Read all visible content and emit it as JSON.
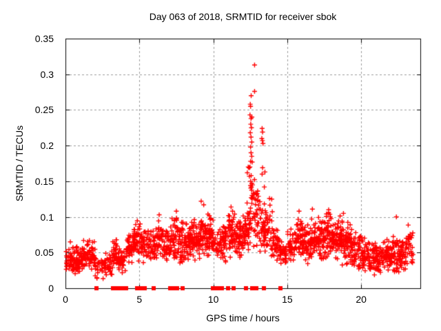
{
  "chart_data": {
    "type": "scatter",
    "title": "Day 063 of 2018, SRMTID for receiver sbok",
    "xlabel": "GPS time / hours",
    "ylabel": "SRMTID / TECUs",
    "xlim": [
      0,
      24
    ],
    "ylim": [
      0,
      0.35
    ],
    "xticks": [
      0,
      5,
      10,
      15,
      20
    ],
    "xtick_labels": [
      "0",
      "5",
      "10",
      "15",
      "20"
    ],
    "yticks": [
      0,
      0.05,
      0.1,
      0.15,
      0.2,
      0.25,
      0.3,
      0.35
    ],
    "ytick_labels": [
      "0",
      "0.05",
      "0.1",
      "0.15",
      "0.2",
      "0.25",
      "0.3",
      "0.35"
    ],
    "grid": true,
    "legend": "none",
    "colors": {
      "axis": "#000000",
      "grid": "#9a9a9a",
      "background": "#ffffff",
      "marker": "#ff0000"
    },
    "series": [
      {
        "name": "SRMTID",
        "marker": "plus",
        "color": "#ff0000",
        "points": [
          [
            0.33,
            0.065
          ],
          [
            6.34,
            0.103
          ],
          [
            7.5,
            0.108
          ],
          [
            9.18,
            0.122
          ],
          [
            9.35,
            0.117
          ],
          [
            11.2,
            0.114
          ],
          [
            11.3,
            0.108
          ],
          [
            12.3,
            0.162
          ],
          [
            12.36,
            0.17
          ],
          [
            12.42,
            0.169
          ],
          [
            12.44,
            0.157
          ],
          [
            12.48,
            0.17
          ],
          [
            12.48,
            0.243
          ],
          [
            12.5,
            0.218
          ],
          [
            12.5,
            0.258
          ],
          [
            12.52,
            0.15
          ],
          [
            12.52,
            0.178
          ],
          [
            12.52,
            0.198
          ],
          [
            12.52,
            0.255
          ],
          [
            12.53,
            0.23
          ],
          [
            12.55,
            0.19
          ],
          [
            12.55,
            0.212
          ],
          [
            12.55,
            0.238
          ],
          [
            12.56,
            0.127
          ],
          [
            12.56,
            0.158
          ],
          [
            12.56,
            0.27
          ],
          [
            12.58,
            0.142
          ],
          [
            12.58,
            0.225
          ],
          [
            12.6,
            0.147
          ],
          [
            12.6,
            0.185
          ],
          [
            12.6,
            0.205
          ],
          [
            12.61,
            0.24
          ],
          [
            12.63,
            0.177
          ],
          [
            12.7,
            0.133
          ],
          [
            12.79,
            0.276
          ],
          [
            12.79,
            0.313
          ],
          [
            12.98,
            0.124
          ],
          [
            13.0,
            0.136
          ],
          [
            13.05,
            0.129
          ],
          [
            13.28,
            0.21
          ],
          [
            13.3,
            0.16
          ],
          [
            13.3,
            0.224
          ],
          [
            13.32,
            0.207
          ],
          [
            13.33,
            0.169
          ],
          [
            13.33,
            0.219
          ],
          [
            13.36,
            0.203
          ],
          [
            13.45,
            0.142
          ],
          [
            13.49,
            0.163
          ],
          [
            13.8,
            0.126
          ],
          [
            13.95,
            0.125
          ],
          [
            15.8,
            0.108
          ],
          [
            16.7,
            0.111
          ],
          [
            17.8,
            0.11
          ],
          [
            18.8,
            0.105
          ],
          [
            22.38,
            0.1
          ]
        ],
        "noise_bands": [
          [
            0.05,
            0.5,
            0.022,
            0.058,
            40
          ],
          [
            0.5,
            1.0,
            0.018,
            0.062,
            45
          ],
          [
            1.0,
            1.5,
            0.022,
            0.068,
            45
          ],
          [
            1.5,
            2.0,
            0.018,
            0.073,
            40
          ],
          [
            2.0,
            2.6,
            0.01,
            0.045,
            28
          ],
          [
            2.6,
            3.1,
            0.014,
            0.052,
            35
          ],
          [
            3.1,
            3.6,
            0.018,
            0.075,
            40
          ],
          [
            3.6,
            4.1,
            0.02,
            0.062,
            35
          ],
          [
            4.1,
            4.6,
            0.03,
            0.08,
            40
          ],
          [
            4.6,
            5.1,
            0.035,
            0.095,
            45
          ],
          [
            5.1,
            5.6,
            0.035,
            0.085,
            40
          ],
          [
            5.6,
            6.1,
            0.03,
            0.085,
            40
          ],
          [
            6.1,
            6.6,
            0.04,
            0.1,
            40
          ],
          [
            6.6,
            7.1,
            0.035,
            0.09,
            40
          ],
          [
            7.1,
            7.6,
            0.035,
            0.105,
            45
          ],
          [
            7.6,
            8.1,
            0.03,
            0.095,
            50
          ],
          [
            8.1,
            8.6,
            0.035,
            0.1,
            50
          ],
          [
            8.6,
            9.1,
            0.035,
            0.1,
            50
          ],
          [
            9.1,
            9.6,
            0.04,
            0.105,
            50
          ],
          [
            9.6,
            10.0,
            0.04,
            0.105,
            45
          ],
          [
            10.0,
            10.5,
            0.035,
            0.09,
            30
          ],
          [
            10.5,
            11.0,
            0.03,
            0.1,
            45
          ],
          [
            11.0,
            11.5,
            0.04,
            0.11,
            50
          ],
          [
            11.5,
            12.0,
            0.04,
            0.105,
            50
          ],
          [
            12.0,
            12.5,
            0.045,
            0.125,
            50
          ],
          [
            12.5,
            13.0,
            0.05,
            0.155,
            45
          ],
          [
            13.0,
            13.5,
            0.045,
            0.135,
            40
          ],
          [
            13.5,
            14.0,
            0.04,
            0.12,
            40
          ],
          [
            14.0,
            14.5,
            0.035,
            0.085,
            40
          ],
          [
            14.5,
            15.0,
            0.028,
            0.07,
            35
          ],
          [
            15.0,
            15.5,
            0.03,
            0.085,
            40
          ],
          [
            15.5,
            16.0,
            0.035,
            0.105,
            45
          ],
          [
            16.0,
            16.5,
            0.03,
            0.095,
            50
          ],
          [
            16.5,
            17.0,
            0.035,
            0.105,
            50
          ],
          [
            17.0,
            17.5,
            0.035,
            0.105,
            50
          ],
          [
            17.5,
            18.0,
            0.04,
            0.11,
            50
          ],
          [
            18.0,
            18.5,
            0.035,
            0.1,
            50
          ],
          [
            18.5,
            19.0,
            0.03,
            0.105,
            50
          ],
          [
            19.0,
            19.5,
            0.03,
            0.095,
            45
          ],
          [
            19.5,
            20.0,
            0.025,
            0.08,
            40
          ],
          [
            20.0,
            20.5,
            0.02,
            0.075,
            45
          ],
          [
            20.5,
            21.0,
            0.018,
            0.068,
            45
          ],
          [
            21.0,
            21.5,
            0.02,
            0.07,
            45
          ],
          [
            21.5,
            22.0,
            0.022,
            0.075,
            45
          ],
          [
            22.0,
            22.5,
            0.02,
            0.078,
            45
          ],
          [
            22.5,
            23.0,
            0.018,
            0.072,
            45
          ],
          [
            23.0,
            23.5,
            0.025,
            0.09,
            35
          ]
        ]
      },
      {
        "name": "zero flags",
        "marker": "filled-square",
        "color": "#ff0000",
        "y": 0,
        "x": [
          2.08,
          3.2,
          3.35,
          3.5,
          3.62,
          3.75,
          3.95,
          4.12,
          4.85,
          5.0,
          5.15,
          5.35,
          5.97,
          7.1,
          7.3,
          7.55,
          7.9,
          9.95,
          10.15,
          10.3,
          10.45,
          10.6,
          11.0,
          11.35,
          12.2,
          12.62,
          12.9,
          13.4,
          14.55
        ]
      }
    ]
  }
}
